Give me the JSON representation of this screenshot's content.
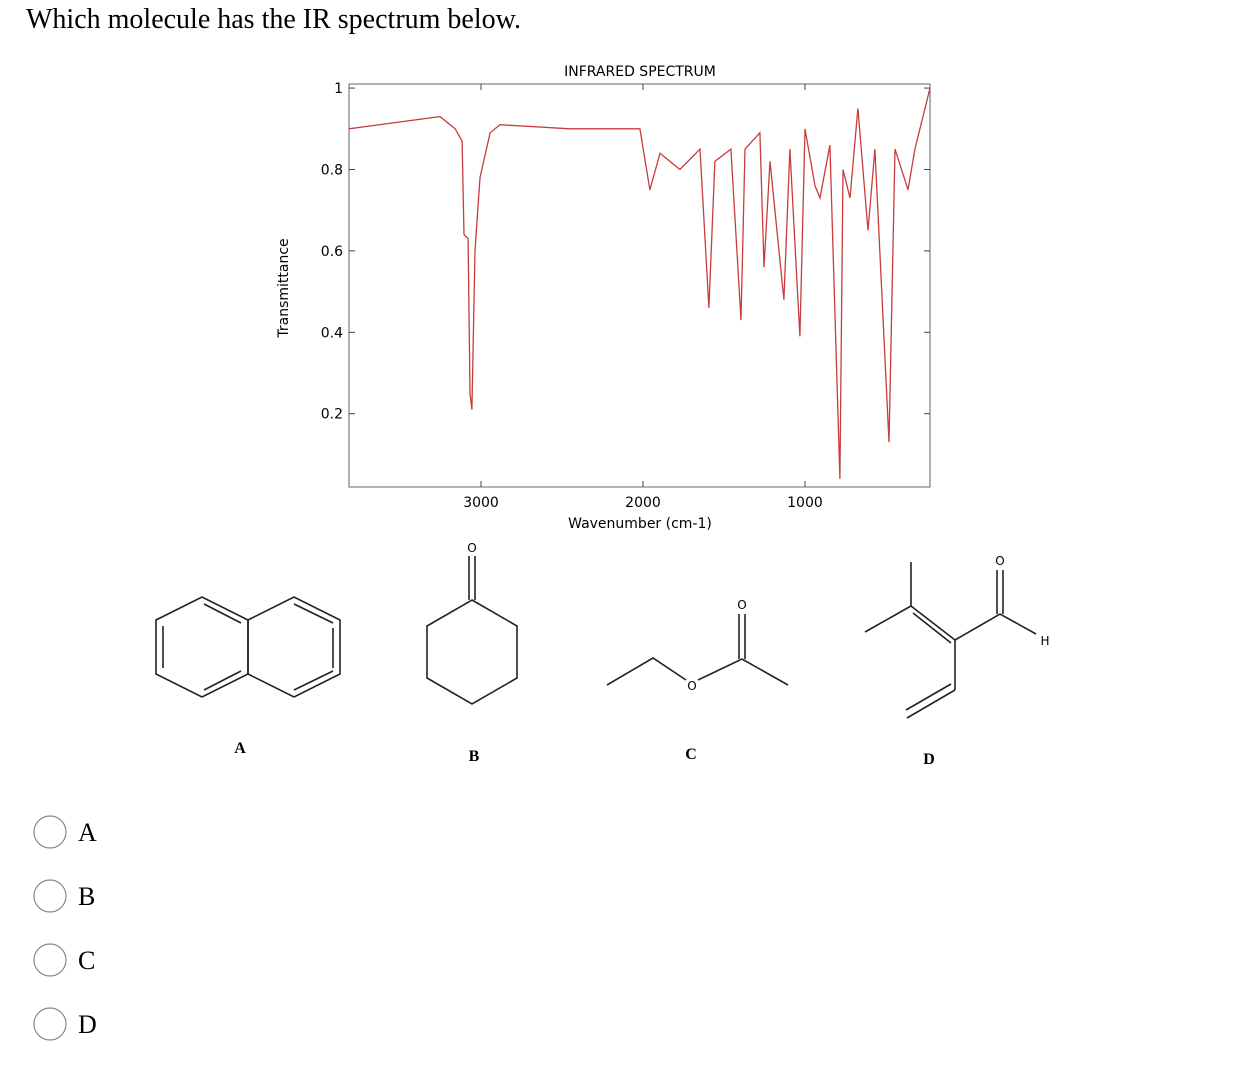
{
  "question": "Which molecule has the IR spectrum below.",
  "chart_data": {
    "type": "line",
    "title": "INFRARED SPECTRUM",
    "x_label": "Wavenumber (cm-1)",
    "y_label": "Transmittance",
    "x": [
      3815,
      3253,
      3160,
      3117,
      3105,
      3080,
      3068,
      3056,
      3037,
      3006,
      2944,
      2883,
      2451,
      2204,
      2019,
      1957,
      1895,
      1772,
      1648,
      1593,
      1556,
      1457,
      1395,
      1370,
      1278,
      1253,
      1216,
      1130,
      1093,
      1031,
      1000,
      938,
      907,
      846,
      784,
      765,
      722,
      673,
      611,
      568,
      481,
      444,
      364,
      321,
      228
    ],
    "series": [
      {
        "name": "Transmittance",
        "color": "#c83c3c",
        "values": [
          0.9,
          0.93,
          0.9,
          0.87,
          0.64,
          0.63,
          0.25,
          0.21,
          0.6,
          0.78,
          0.89,
          0.91,
          0.9,
          0.9,
          0.9,
          0.75,
          0.84,
          0.8,
          0.85,
          0.46,
          0.82,
          0.85,
          0.43,
          0.85,
          0.89,
          0.56,
          0.82,
          0.48,
          0.85,
          0.39,
          0.9,
          0.76,
          0.73,
          0.86,
          0.04,
          0.8,
          0.73,
          0.95,
          0.65,
          0.85,
          0.13,
          0.85,
          0.75,
          0.85,
          1.0
        ]
      }
    ],
    "xlim": [
      3815,
      228
    ],
    "ylim": [
      0.02,
      1.01
    ],
    "xticks": [
      3000,
      2000,
      1000
    ],
    "yticks": [
      0.2,
      0.4,
      0.6,
      0.8,
      1
    ]
  },
  "molecules": [
    {
      "label": "A"
    },
    {
      "label": "B",
      "atoms": [
        "O"
      ]
    },
    {
      "label": "C",
      "atoms": [
        "O",
        "O"
      ]
    },
    {
      "label": "D",
      "atoms": [
        "O",
        "H"
      ]
    }
  ],
  "options": [
    "A",
    "B",
    "C",
    "D"
  ]
}
